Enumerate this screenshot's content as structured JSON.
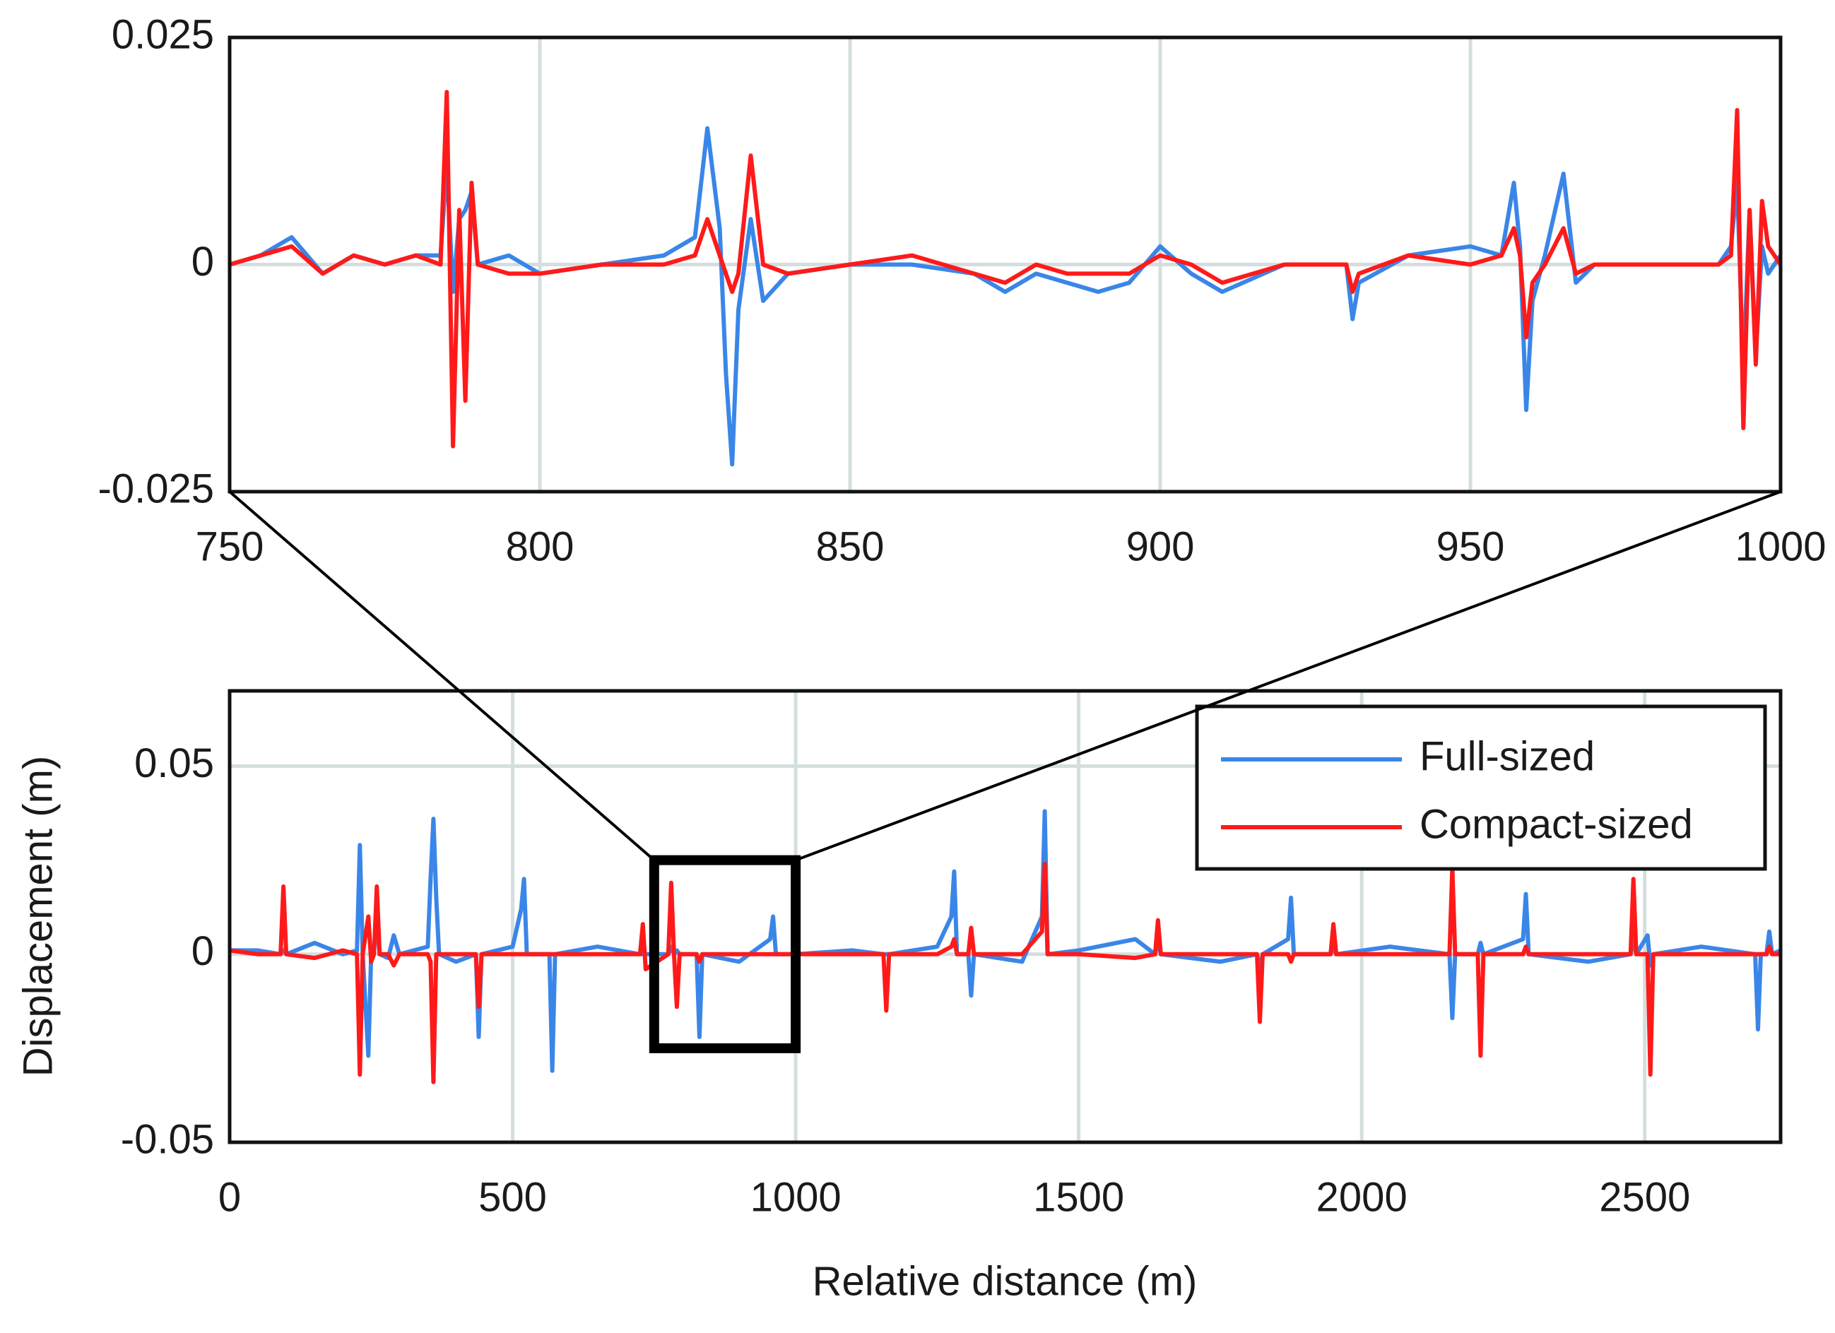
{
  "chart_data": [
    {
      "type": "line",
      "x": [
        750,
        755,
        760,
        765,
        770,
        775,
        780,
        784,
        785,
        786,
        787,
        788,
        789,
        790,
        795,
        800,
        810,
        820,
        825,
        827,
        829,
        830,
        831,
        832,
        834,
        836,
        840,
        850,
        860,
        870,
        875,
        880,
        885,
        890,
        895,
        900,
        905,
        910,
        920,
        930,
        931,
        932,
        940,
        950,
        955,
        957,
        958,
        959,
        960,
        962,
        965,
        967,
        970,
        980,
        990,
        992,
        993,
        994,
        995,
        996,
        997,
        998,
        1000
      ],
      "series": [
        {
          "name": "Full-sized",
          "color": "#3a86e8",
          "values": [
            0,
            0.001,
            0.003,
            -0.001,
            0.001,
            0,
            0.001,
            0.001,
            0.011,
            -0.003,
            0.005,
            0.006,
            0.008,
            0,
            0.001,
            -0.001,
            0,
            0.001,
            0.003,
            0.015,
            0.004,
            -0.012,
            -0.022,
            -0.005,
            0.005,
            -0.004,
            -0.001,
            0,
            0,
            -0.001,
            -0.003,
            -0.001,
            -0.002,
            -0.003,
            -0.002,
            0.002,
            -0.001,
            -0.003,
            0,
            0,
            -0.006,
            -0.002,
            0.001,
            0.002,
            0.001,
            0.009,
            0.002,
            -0.016,
            -0.004,
            0.001,
            0.01,
            -0.002,
            0,
            0,
            0,
            0.002,
            0.009,
            -0.012,
            0.006,
            -0.01,
            0.002,
            -0.001,
            0.001
          ]
        },
        {
          "name": "Compact-sized",
          "color": "#ff1a1a",
          "values": [
            0,
            0.001,
            0.002,
            -0.001,
            0.001,
            0,
            0.001,
            0,
            0.019,
            -0.02,
            0.006,
            -0.015,
            0.009,
            0,
            -0.001,
            -0.001,
            0,
            0,
            0.001,
            0.005,
            0.001,
            -0.001,
            -0.003,
            -0.001,
            0.012,
            0,
            -0.001,
            0,
            0.001,
            -0.001,
            -0.002,
            0,
            -0.001,
            -0.001,
            -0.001,
            0.001,
            0,
            -0.002,
            0,
            0,
            -0.003,
            -0.001,
            0.001,
            0,
            0.001,
            0.004,
            0.001,
            -0.008,
            -0.002,
            0,
            0.004,
            -0.001,
            0,
            0,
            0,
            0.001,
            0.017,
            -0.018,
            0.006,
            -0.011,
            0.007,
            0.002,
            0
          ]
        }
      ],
      "xlim": [
        750,
        1000
      ],
      "xticks": [
        750,
        800,
        850,
        900,
        950,
        1000
      ],
      "ylim": [
        -0.025,
        0.025
      ],
      "yticks": [
        -0.025,
        0,
        0.025
      ],
      "grid": true
    },
    {
      "type": "line",
      "xlabel": "Relative distance (m)",
      "ylabel": "Displacement (m)",
      "x": [
        0,
        50,
        90,
        95,
        100,
        150,
        200,
        225,
        230,
        235,
        245,
        250,
        255,
        260,
        265,
        280,
        290,
        300,
        350,
        355,
        360,
        365,
        370,
        400,
        435,
        440,
        445,
        500,
        515,
        520,
        525,
        565,
        570,
        575,
        650,
        725,
        730,
        735,
        775,
        780,
        785,
        790,
        795,
        825,
        830,
        835,
        900,
        955,
        960,
        965,
        1000,
        1100,
        1155,
        1160,
        1165,
        1250,
        1275,
        1280,
        1285,
        1305,
        1310,
        1315,
        1400,
        1435,
        1440,
        1445,
        1500,
        1600,
        1635,
        1640,
        1645,
        1750,
        1815,
        1820,
        1825,
        1870,
        1875,
        1880,
        1945,
        1950,
        1955,
        2050,
        2155,
        2160,
        2165,
        2205,
        2210,
        2215,
        2285,
        2290,
        2295,
        2400,
        2475,
        2480,
        2485,
        2505,
        2510,
        2515,
        2600,
        2695,
        2700,
        2705,
        2715,
        2720,
        2725,
        2740
      ],
      "series": [
        {
          "name": "Full-sized",
          "color": "#3a86e8",
          "values": [
            0.001,
            0.001,
            0,
            0.001,
            0,
            0.003,
            0,
            0.001,
            0.029,
            0,
            -0.027,
            0,
            0.002,
            0.008,
            0,
            -0.001,
            0.005,
            0,
            0.002,
            0.02,
            0.036,
            0.015,
            0,
            -0.002,
            0,
            -0.022,
            0,
            0.002,
            0.012,
            0.02,
            0,
            0,
            -0.031,
            0,
            0.002,
            0,
            0,
            0,
            0,
            0.002,
            0,
            0.001,
            0,
            0,
            -0.022,
            0,
            -0.002,
            0.004,
            0.01,
            0,
            0,
            0.001,
            0,
            0,
            0,
            0.002,
            0.01,
            0.022,
            0,
            0,
            -0.011,
            0,
            -0.002,
            0.01,
            0.038,
            0,
            0.001,
            0.004,
            0,
            0.004,
            0,
            -0.002,
            0,
            -0.004,
            0,
            0.004,
            0.015,
            0,
            0,
            0.002,
            0,
            0.002,
            0,
            -0.017,
            0,
            0,
            0.003,
            0,
            0.004,
            0.016,
            0,
            -0.002,
            0,
            0.004,
            0,
            0.005,
            -0.003,
            0,
            0.002,
            0,
            -0.02,
            0,
            0,
            0.006,
            0,
            0.001
          ]
        },
        {
          "name": "Compact-sized",
          "color": "#ff1a1a",
          "values": [
            0.001,
            0,
            0,
            0.018,
            0,
            -0.001,
            0.001,
            0,
            -0.032,
            0,
            0.01,
            -0.002,
            0,
            0.018,
            0,
            0,
            -0.003,
            0,
            0,
            -0.002,
            -0.034,
            0,
            0,
            0,
            0,
            -0.014,
            0,
            0,
            0,
            0,
            0,
            0,
            0,
            0,
            0,
            0,
            0.008,
            -0.004,
            0,
            0.019,
            0,
            -0.014,
            0,
            0,
            -0.002,
            0,
            0,
            0,
            0,
            0,
            0,
            0,
            0,
            -0.015,
            0,
            0,
            0.002,
            0.004,
            0,
            0,
            0.007,
            0,
            0,
            0.006,
            0.024,
            0,
            0,
            -0.001,
            0,
            0.009,
            0,
            0,
            0,
            -0.018,
            0,
            0,
            -0.002,
            0,
            0,
            0.008,
            0,
            0,
            0,
            0.023,
            0,
            0,
            -0.027,
            0,
            0,
            0.002,
            0,
            0,
            0,
            0.02,
            0,
            0,
            -0.032,
            0,
            0,
            0,
            0,
            0,
            0,
            0.002,
            0,
            0
          ]
        }
      ],
      "xlim": [
        0,
        2740
      ],
      "xticks": [
        0,
        500,
        1000,
        1500,
        2000,
        2500
      ],
      "ylim": [
        -0.05,
        0.07
      ],
      "yticks": [
        -0.05,
        0,
        0.05
      ],
      "grid": true,
      "legend": "upper right"
    }
  ]
}
